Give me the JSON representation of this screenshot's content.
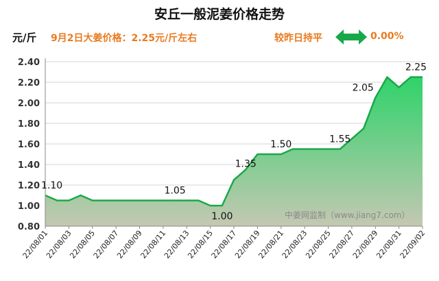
{
  "header": {
    "title": "安丘一般泥姜价格走势",
    "unit": "元/斤",
    "price_note": "9月2日大姜价格：2.25元/斤左右",
    "comparison": "较昨日持平",
    "change": "0.00%",
    "arrow_icon": "double-arrow-icon",
    "accent_color": "#e87a20",
    "arrow_color": "#18a84a"
  },
  "watermark": "中姜网监制（www.jiang7.com）",
  "chart_data": {
    "type": "area",
    "title": "安丘一般泥姜价格走势",
    "ylabel": "元/斤",
    "ylim": [
      0.8,
      2.4
    ],
    "yticks": [
      "0.80",
      "1.00",
      "1.20",
      "1.40",
      "1.60",
      "1.80",
      "2.00",
      "2.20",
      "2.40"
    ],
    "grid": true,
    "x": [
      "22/08/01",
      "22/08/02",
      "22/08/03",
      "22/08/04",
      "22/08/05",
      "22/08/06",
      "22/08/07",
      "22/08/08",
      "22/08/09",
      "22/08/10",
      "22/08/11",
      "22/08/12",
      "22/08/13",
      "22/08/14",
      "22/08/15",
      "22/08/16",
      "22/08/17",
      "22/08/18",
      "22/08/19",
      "22/08/20",
      "22/08/21",
      "22/08/22",
      "22/08/23",
      "22/08/24",
      "22/08/25",
      "22/08/26",
      "22/08/27",
      "22/08/28",
      "22/08/29",
      "22/08/30",
      "22/08/31",
      "22/09/01",
      "22/09/02"
    ],
    "xtick_labels": [
      "22/08/01",
      "22/08/03",
      "22/08/05",
      "22/08/07",
      "22/08/09",
      "22/08/11",
      "22/08/13",
      "22/08/15",
      "22/08/17",
      "22/08/19",
      "22/08/21",
      "22/08/23",
      "22/08/25",
      "22/08/27",
      "22/08/29",
      "22/08/31",
      "22/09/02"
    ],
    "values": [
      1.1,
      1.05,
      1.05,
      1.1,
      1.05,
      1.05,
      1.05,
      1.05,
      1.05,
      1.05,
      1.05,
      1.05,
      1.05,
      1.05,
      1.0,
      1.0,
      1.25,
      1.35,
      1.5,
      1.5,
      1.5,
      1.55,
      1.55,
      1.55,
      1.55,
      1.55,
      1.65,
      1.75,
      2.05,
      2.25,
      2.15,
      2.25,
      2.25
    ],
    "annotations": [
      {
        "index": 0,
        "label": "1.10"
      },
      {
        "index": 11,
        "label": "1.05"
      },
      {
        "index": 15,
        "label": "1.00"
      },
      {
        "index": 17,
        "label": "1.35"
      },
      {
        "index": 20,
        "label": "1.50"
      },
      {
        "index": 25,
        "label": "1.55"
      },
      {
        "index": 28,
        "label": "2.05"
      },
      {
        "index": 32,
        "label": "2.25"
      }
    ],
    "line_color": "#1aa84a",
    "fill_top_color": "#2fd36a",
    "fill_bottom_color": "#c4c8b2"
  }
}
